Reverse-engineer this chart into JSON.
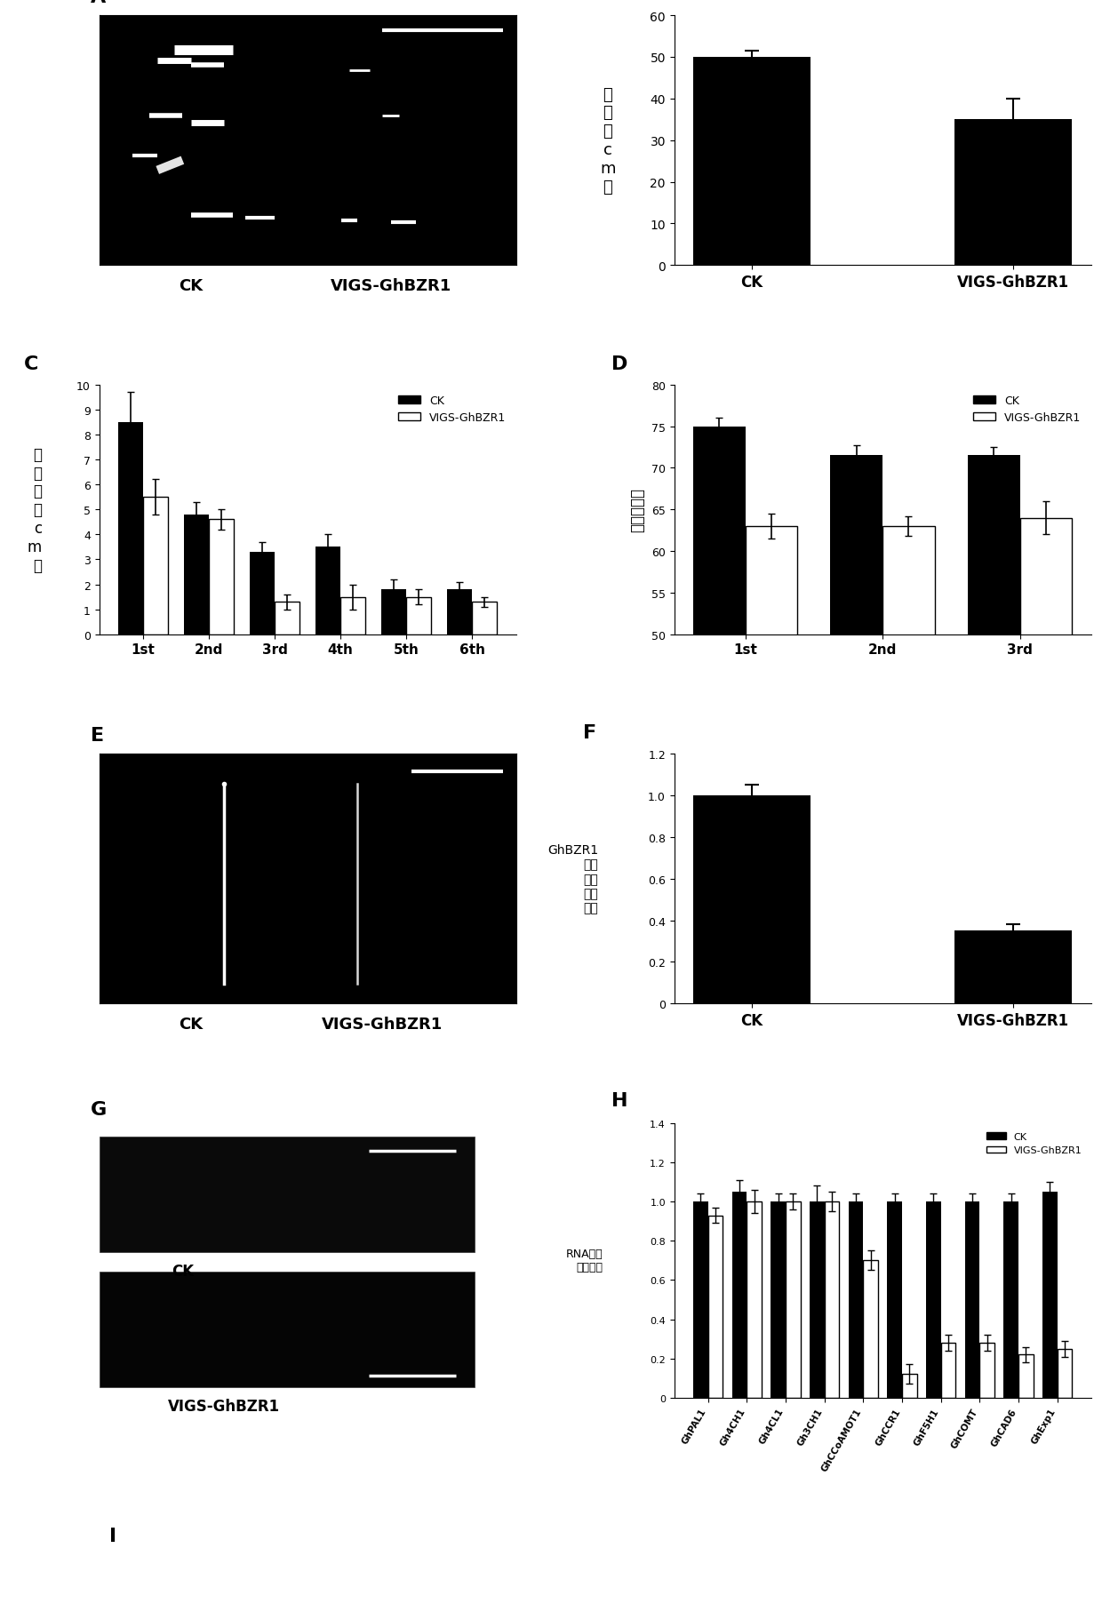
{
  "panel_B": {
    "categories": [
      "CK",
      "VIGS-GhBZR1"
    ],
    "values": [
      50,
      35
    ],
    "errors": [
      1.5,
      5
    ],
    "ylim": [
      0,
      60
    ],
    "yticks": [
      0,
      10,
      20,
      30,
      40,
      50,
      60
    ],
    "ylabel_chars": [
      "株",
      "高",
      "（",
      "c",
      "m",
      "）"
    ]
  },
  "panel_C": {
    "categories": [
      "1st",
      "2nd",
      "3rd",
      "4th",
      "5th",
      "6th"
    ],
    "ck_values": [
      8.5,
      4.8,
      3.3,
      3.5,
      1.8,
      1.8
    ],
    "vigs_values": [
      5.5,
      4.6,
      1.3,
      1.5,
      1.5,
      1.3
    ],
    "ck_errors": [
      1.2,
      0.5,
      0.4,
      0.5,
      0.4,
      0.3
    ],
    "vigs_errors": [
      0.7,
      0.4,
      0.3,
      0.5,
      0.3,
      0.2
    ],
    "ylim": [
      0,
      10
    ],
    "yticks": [
      0,
      1,
      2,
      3,
      4,
      5,
      6,
      7,
      8,
      9,
      10
    ],
    "ylabel_chars": [
      "节",
      "间",
      "距",
      "（",
      "c",
      "m",
      "）"
    ]
  },
  "panel_D": {
    "categories": [
      "1st",
      "2nd",
      "3rd"
    ],
    "ck_values": [
      75,
      71.5,
      71.5
    ],
    "vigs_values": [
      63,
      63,
      64
    ],
    "ck_errors": [
      1,
      1.2,
      1
    ],
    "vigs_errors": [
      1.5,
      1.2,
      2
    ],
    "ylim": [
      50,
      80
    ],
    "yticks": [
      50,
      55,
      60,
      65,
      70,
      75,
      80
    ],
    "ylabel": "果枝夹角度"
  },
  "panel_F": {
    "categories": [
      "CK",
      "VIGS-GhBZR1"
    ],
    "values": [
      1.0,
      0.35
    ],
    "errors": [
      0.05,
      0.03
    ],
    "ylim": [
      0,
      1.2
    ],
    "yticks": [
      0,
      0.2,
      0.4,
      0.6,
      0.8,
      1.0,
      1.2
    ],
    "ylabel_chars": [
      "G",
      "h",
      "B",
      "Z",
      "R",
      "1",
      "基",
      "因",
      "的",
      "相",
      "对",
      "表",
      "达",
      "量"
    ]
  },
  "panel_H": {
    "genes": [
      "GhPAL1",
      "Gh4CH1",
      "Gh4CL1",
      "Gh3CH1",
      "GhCCoAMOT1",
      "GhCCR1",
      "GhF5H1",
      "GhCOMT",
      "GhCAD6",
      "GhExp1"
    ],
    "ck_values": [
      1.0,
      1.05,
      1.0,
      1.0,
      1.0,
      1.0,
      1.0,
      1.0,
      1.0,
      1.05
    ],
    "vigs_values": [
      0.93,
      1.0,
      1.0,
      1.0,
      0.7,
      0.12,
      0.28,
      0.28,
      0.22,
      0.25
    ],
    "ck_errors": [
      0.04,
      0.06,
      0.04,
      0.08,
      0.04,
      0.04,
      0.04,
      0.04,
      0.04,
      0.05
    ],
    "vigs_errors": [
      0.04,
      0.06,
      0.04,
      0.05,
      0.05,
      0.05,
      0.04,
      0.04,
      0.04,
      0.04
    ],
    "ylim": [
      0,
      1.4
    ],
    "yticks": [
      0,
      0.2,
      0.4,
      0.6,
      0.8,
      1.0,
      1.2,
      1.4
    ],
    "ylabel_chars": [
      "R",
      "N",
      "A",
      "中",
      "相",
      "对",
      "表",
      "达",
      "量"
    ]
  }
}
